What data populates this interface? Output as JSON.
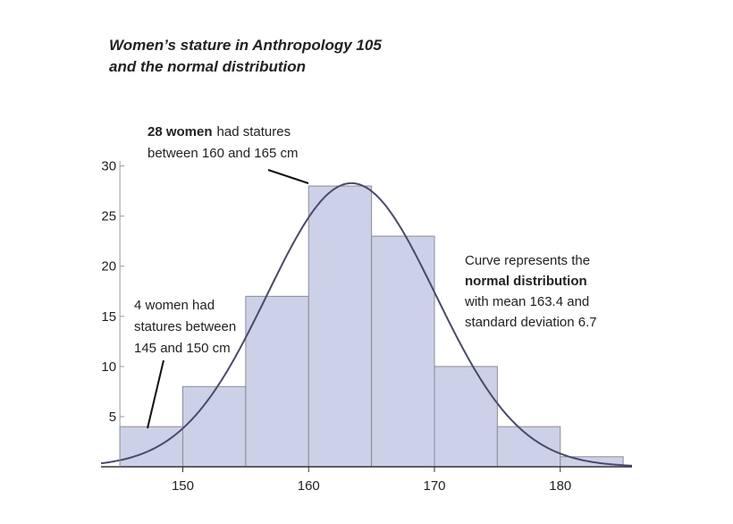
{
  "chart_data": {
    "type": "histogram",
    "title": [
      "Women’s stature in Anthropology 105",
      "and the normal distribution"
    ],
    "bins": [
      145,
      150,
      155,
      160,
      165,
      170,
      175,
      180,
      185
    ],
    "values": [
      4,
      8,
      17,
      28,
      23,
      10,
      4,
      1
    ],
    "color": "#ccd1e8",
    "curve": {
      "mean": 163.4,
      "sd": 6.7,
      "color": "#4a4a6a"
    },
    "xlim": [
      143.5,
      185.7
    ],
    "ylim": [
      0,
      30.5
    ],
    "xticks": [
      150,
      160,
      170,
      180
    ],
    "yticks": [
      5,
      10,
      15,
      20,
      25,
      30
    ],
    "annotations": [
      {
        "bold": "28 women",
        "lines": [
          "had statures",
          "between 160 and 165 cm"
        ]
      },
      {
        "lines": [
          "4 women had",
          "statures between",
          "145 and 150 cm"
        ]
      },
      {
        "first": "Curve represents the",
        "bold": "normal distribution",
        "lines": [
          "with mean 163.4 and",
          "standard deviation 6.7"
        ]
      }
    ]
  }
}
